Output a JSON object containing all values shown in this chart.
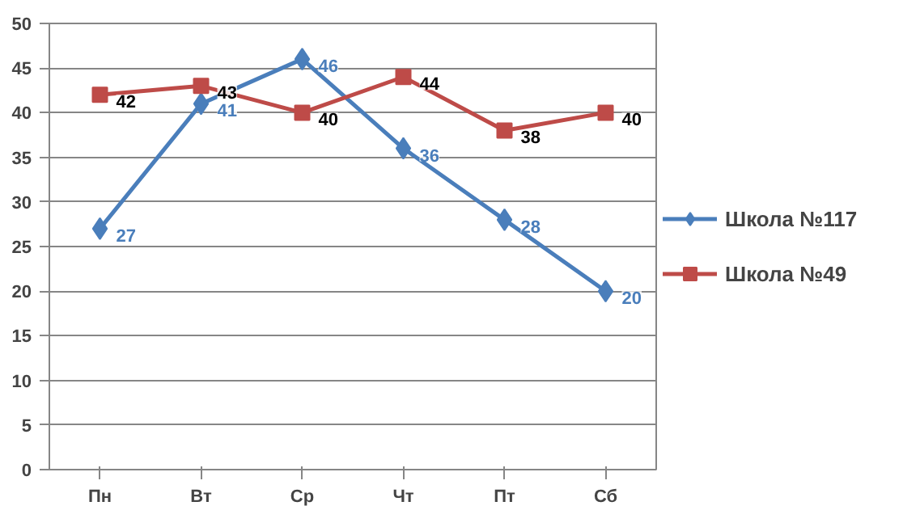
{
  "chart_data": {
    "type": "line",
    "categories": [
      "Пн",
      "Вт",
      "Ср",
      "Чт",
      "Пт",
      "Сб"
    ],
    "series": [
      {
        "name": "Школа №117",
        "color": "#4a7ebb",
        "marker": "diamond",
        "values": [
          27,
          41,
          46,
          36,
          28,
          20
        ]
      },
      {
        "name": "Школа №49",
        "color": "#be4b48",
        "marker": "square",
        "values": [
          42,
          43,
          40,
          44,
          38,
          40
        ]
      }
    ],
    "ylim": [
      0,
      50
    ],
    "yticks": [
      0,
      5,
      10,
      15,
      20,
      25,
      30,
      35,
      40,
      45,
      50
    ],
    "grid": "y",
    "legend": "right",
    "data_labels": true
  }
}
